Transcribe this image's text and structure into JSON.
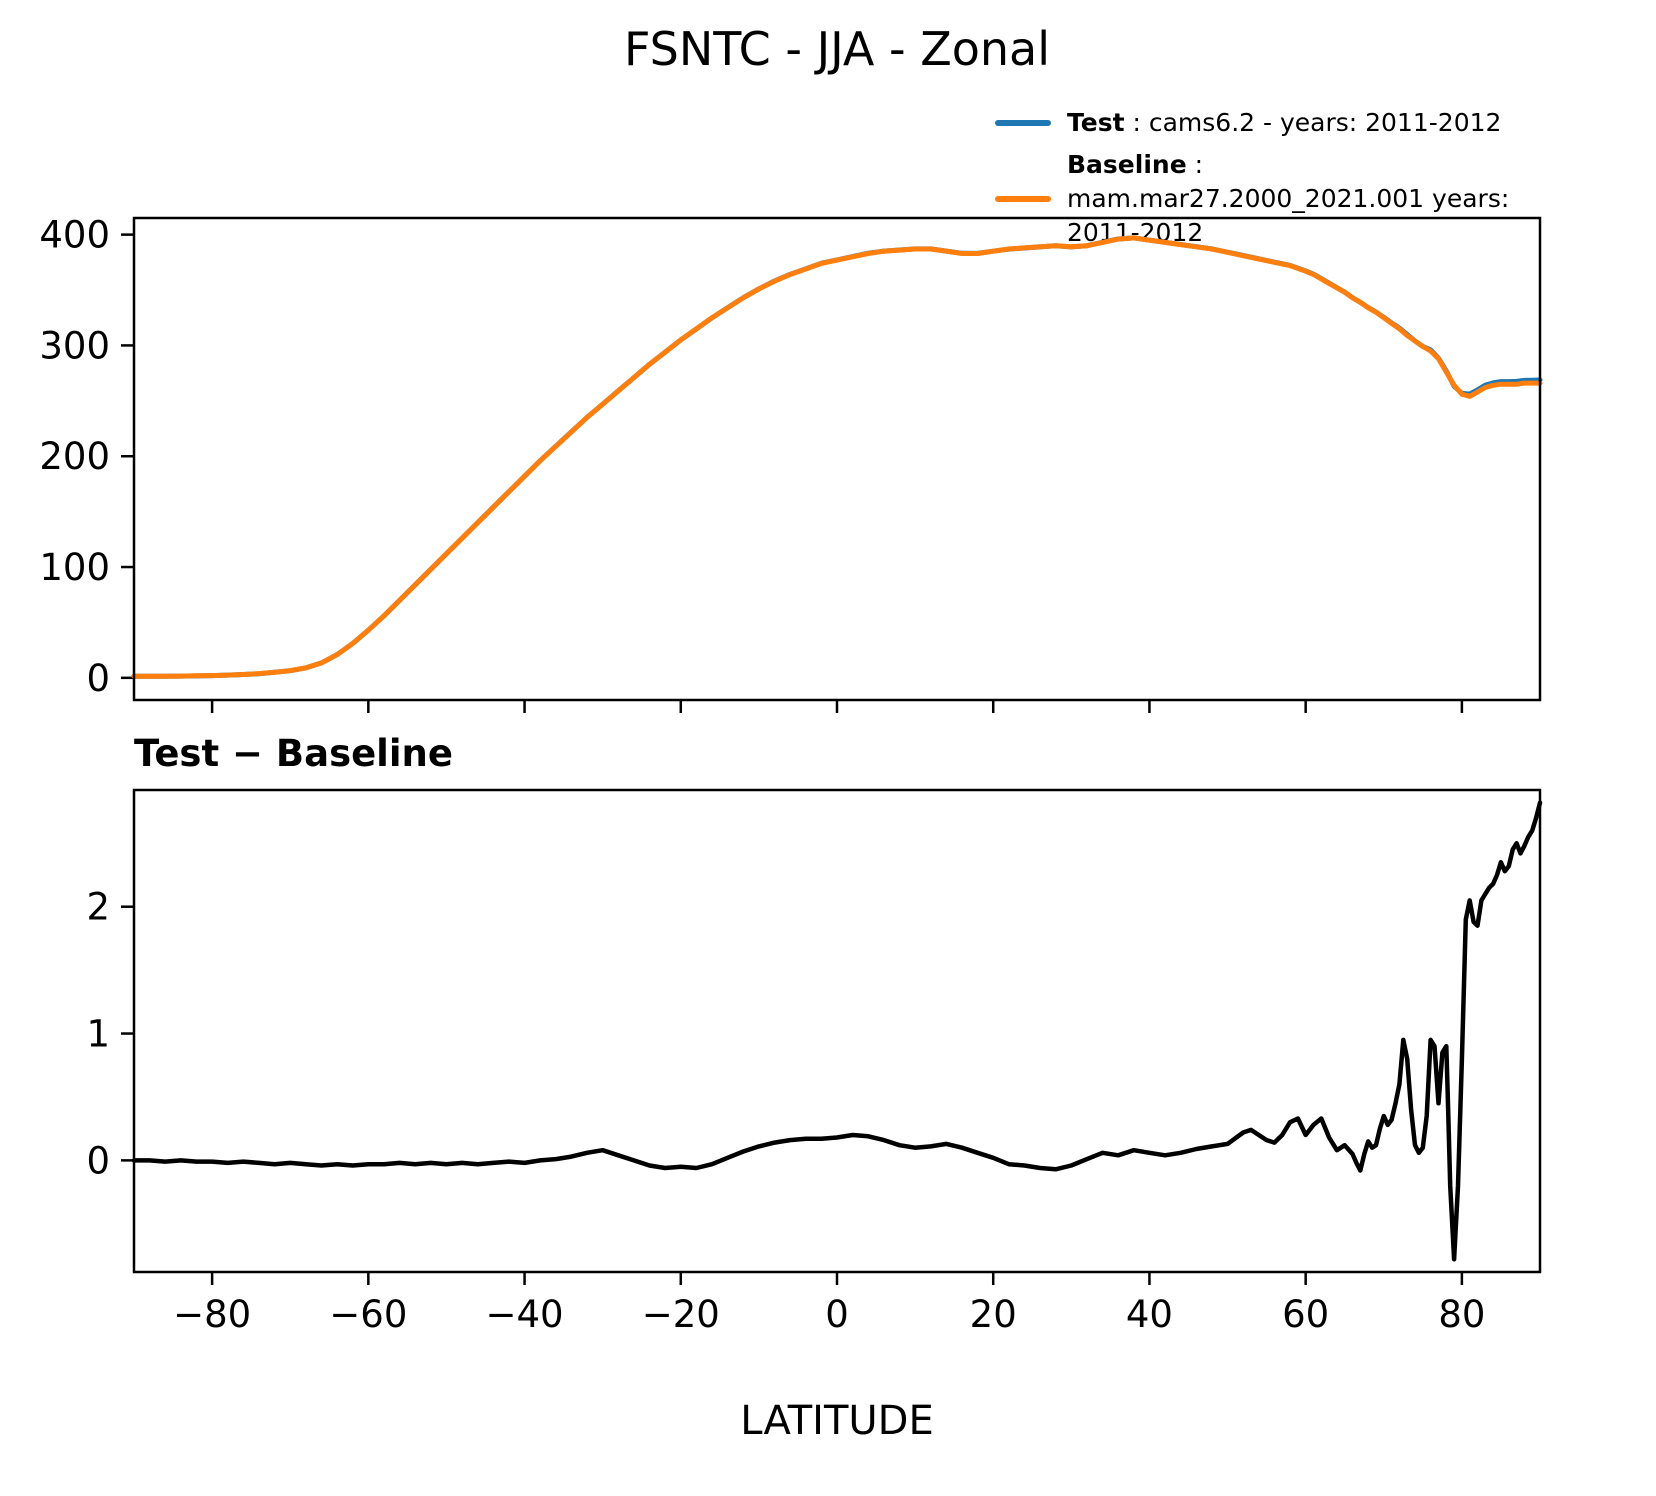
{
  "figure": {
    "title": "FSNTC - JJA - Zonal",
    "xlabel": "LATITUDE"
  },
  "legend": {
    "items": [
      {
        "name": "Test",
        "separator": " : ",
        "desc": "cams6.2 - years: 2011-2012",
        "color": "#1f77b4"
      },
      {
        "name": "Baseline",
        "separator": " : ",
        "desc": "mam.mar27.2000_2021.001 years: 2011-2012",
        "color": "#ff7f0e"
      }
    ]
  },
  "diff_panel": {
    "title": "Test − Baseline"
  },
  "chart_data": [
    {
      "type": "line",
      "title": "FSNTC - JJA - Zonal",
      "xlabel": "",
      "ylabel": "",
      "xlim": [
        -90,
        90
      ],
      "ylim": [
        -20,
        415
      ],
      "grid": false,
      "legend_position": "upper right, above axes",
      "xticks": [
        -80,
        -60,
        -40,
        -20,
        0,
        20,
        40,
        60,
        80
      ],
      "xtick_labels": [],
      "yticks": [
        0,
        100,
        200,
        300,
        400
      ],
      "ytick_labels": [
        "0",
        "100",
        "200",
        "300",
        "400"
      ],
      "x": [
        -90,
        -88,
        -86,
        -84,
        -82,
        -80,
        -78,
        -76,
        -74,
        -72,
        -70,
        -68,
        -66,
        -64,
        -62,
        -60,
        -58,
        -56,
        -54,
        -52,
        -50,
        -48,
        -46,
        -44,
        -42,
        -40,
        -38,
        -36,
        -34,
        -32,
        -30,
        -28,
        -26,
        -24,
        -22,
        -20,
        -18,
        -16,
        -14,
        -12,
        -10,
        -8,
        -6,
        -4,
        -2,
        0,
        2,
        4,
        6,
        8,
        10,
        12,
        14,
        16,
        18,
        20,
        22,
        24,
        26,
        28,
        30,
        32,
        34,
        36,
        38,
        40,
        42,
        44,
        46,
        48,
        50,
        52,
        54,
        56,
        58,
        60,
        61,
        62,
        63,
        64,
        65,
        66,
        67,
        68,
        69,
        70,
        71,
        72,
        73,
        74,
        75,
        76,
        77,
        78,
        79,
        80,
        81,
        82,
        83,
        84,
        85,
        86,
        87,
        88,
        89,
        90
      ],
      "series": [
        {
          "name": "Test",
          "color": "#1f77b4",
          "values": [
            1.5,
            1.5,
            1.49,
            1.6,
            1.79,
            1.99,
            2.48,
            2.99,
            3.78,
            4.97,
            6.48,
            8.97,
            13.46,
            20.97,
            30.96,
            42.97,
            55.97,
            69.98,
            83.97,
            97.98,
            111.97,
            125.98,
            139.97,
            153.98,
            167.99,
            181.98,
            196,
            209.01,
            222.03,
            235.06,
            247.08,
            259.04,
            271,
            282.96,
            293.94,
            304.95,
            314.94,
            324.97,
            334.02,
            343.07,
            351.11,
            358.14,
            364.16,
            369.17,
            374.17,
            377.18,
            380.2,
            383.19,
            385.16,
            386.12,
            387.1,
            387.11,
            385.13,
            383.1,
            383.06,
            385.02,
            386.97,
            387.96,
            388.94,
            389.93,
            388.96,
            390.01,
            393.06,
            396.04,
            397.08,
            395.06,
            393.04,
            391.06,
            389.09,
            387.11,
            384.13,
            381.22,
            378.2,
            375.14,
            372.3,
            367.2,
            364.28,
            360.33,
            356.18,
            352.08,
            348.12,
            343.05,
            338.92,
            334.15,
            330.12,
            325.35,
            320.32,
            315.6,
            309.8,
            304.12,
            299.1,
            295.95,
            288.45,
            276.9,
            263.22,
            256.8,
            256.05,
            259.85,
            264.1,
            266.18,
            267.35,
            267.32,
            267.5,
            268.48,
            268.6,
            268.82
          ]
        },
        {
          "name": "Baseline",
          "color": "#ff7f0e",
          "values": [
            1.5,
            1.5,
            1.5,
            1.6,
            1.8,
            2,
            2.5,
            3,
            3.8,
            5,
            6.5,
            9,
            13.5,
            21,
            31,
            43,
            56,
            70,
            84,
            98,
            112,
            126,
            140,
            154,
            168,
            182,
            196,
            209,
            222,
            235,
            247,
            259,
            271,
            283,
            294,
            305,
            315,
            325,
            334,
            343,
            351,
            358,
            364,
            369,
            374,
            377,
            380,
            383,
            385,
            386,
            387,
            387,
            385,
            383,
            383,
            385,
            387,
            388,
            389,
            390,
            389,
            390,
            393,
            396,
            397,
            395,
            393,
            391,
            389,
            387,
            384,
            381,
            378,
            375,
            372,
            367,
            364,
            360,
            356,
            352,
            348,
            343,
            339,
            334,
            330,
            325,
            320,
            315,
            309,
            304,
            299,
            295,
            288,
            276,
            264,
            256,
            254,
            258,
            262,
            264,
            265,
            265,
            265,
            266,
            266,
            266
          ]
        }
      ]
    },
    {
      "type": "line",
      "title": "Test − Baseline",
      "xlabel": "LATITUDE",
      "ylabel": "",
      "xlim": [
        -90,
        90
      ],
      "ylim": [
        -0.88,
        2.92
      ],
      "grid": false,
      "xticks": [
        -80,
        -60,
        -40,
        -20,
        0,
        20,
        40,
        60,
        80
      ],
      "xtick_labels": [
        "−80",
        "−60",
        "−40",
        "−20",
        "0",
        "20",
        "40",
        "60",
        "80"
      ],
      "yticks": [
        0,
        1,
        2
      ],
      "ytick_labels": [
        "0",
        "1",
        "2"
      ],
      "x": [
        -90,
        -88,
        -86,
        -84,
        -82,
        -80,
        -78,
        -76,
        -74,
        -72,
        -70,
        -68,
        -66,
        -64,
        -62,
        -60,
        -58,
        -56,
        -54,
        -52,
        -50,
        -48,
        -46,
        -44,
        -42,
        -40,
        -38,
        -36,
        -34,
        -32,
        -30,
        -28,
        -26,
        -24,
        -22,
        -20,
        -18,
        -16,
        -14,
        -12,
        -10,
        -8,
        -6,
        -4,
        -2,
        0,
        2,
        4,
        6,
        8,
        10,
        12,
        14,
        16,
        18,
        20,
        22,
        24,
        26,
        28,
        30,
        32,
        34,
        36,
        38,
        40,
        42,
        44,
        46,
        48,
        50,
        52,
        53,
        54,
        55,
        56,
        57,
        58,
        59,
        60,
        61,
        62,
        63,
        64,
        65,
        66,
        66.5,
        67,
        67.5,
        68,
        68.5,
        69,
        69.5,
        70,
        70.5,
        71,
        71.5,
        72,
        72.5,
        73,
        73.5,
        74,
        74.5,
        75,
        75.5,
        76,
        76.5,
        77,
        77.5,
        78,
        78.2,
        78.5,
        79,
        79.5,
        80,
        80.5,
        81,
        81.5,
        82,
        82.5,
        83,
        83.5,
        84,
        84.5,
        85,
        85.5,
        86,
        86.5,
        87,
        87.5,
        88,
        88.5,
        89,
        89.5,
        90
      ],
      "series": [
        {
          "name": "Test minus Baseline",
          "color": "#000000",
          "values": [
            0,
            0,
            -0.01,
            0,
            -0.01,
            -0.01,
            -0.02,
            -0.01,
            -0.02,
            -0.03,
            -0.02,
            -0.03,
            -0.04,
            -0.03,
            -0.04,
            -0.03,
            -0.03,
            -0.02,
            -0.03,
            -0.02,
            -0.03,
            -0.02,
            -0.03,
            -0.02,
            -0.01,
            -0.02,
            0,
            0.01,
            0.03,
            0.06,
            0.08,
            0.04,
            0,
            -0.04,
            -0.06,
            -0.05,
            -0.06,
            -0.03,
            0.02,
            0.07,
            0.11,
            0.14,
            0.16,
            0.17,
            0.17,
            0.18,
            0.2,
            0.19,
            0.16,
            0.12,
            0.1,
            0.11,
            0.13,
            0.1,
            0.06,
            0.02,
            -0.03,
            -0.04,
            -0.06,
            -0.07,
            -0.04,
            0.01,
            0.06,
            0.04,
            0.08,
            0.06,
            0.04,
            0.06,
            0.09,
            0.11,
            0.13,
            0.22,
            0.24,
            0.2,
            0.16,
            0.14,
            0.2,
            0.3,
            0.33,
            0.2,
            0.28,
            0.33,
            0.18,
            0.08,
            0.12,
            0.05,
            -0.02,
            -0.08,
            0.05,
            0.15,
            0.1,
            0.12,
            0.25,
            0.35,
            0.28,
            0.32,
            0.45,
            0.6,
            0.95,
            0.8,
            0.4,
            0.12,
            0.06,
            0.1,
            0.35,
            0.95,
            0.9,
            0.45,
            0.85,
            0.9,
            0.5,
            -0.2,
            -0.78,
            -0.2,
            0.8,
            1.9,
            2.05,
            1.88,
            1.85,
            2.05,
            2.1,
            2.15,
            2.18,
            2.25,
            2.35,
            2.28,
            2.32,
            2.45,
            2.5,
            2.42,
            2.48,
            2.55,
            2.6,
            2.7,
            2.82
          ]
        }
      ]
    }
  ]
}
